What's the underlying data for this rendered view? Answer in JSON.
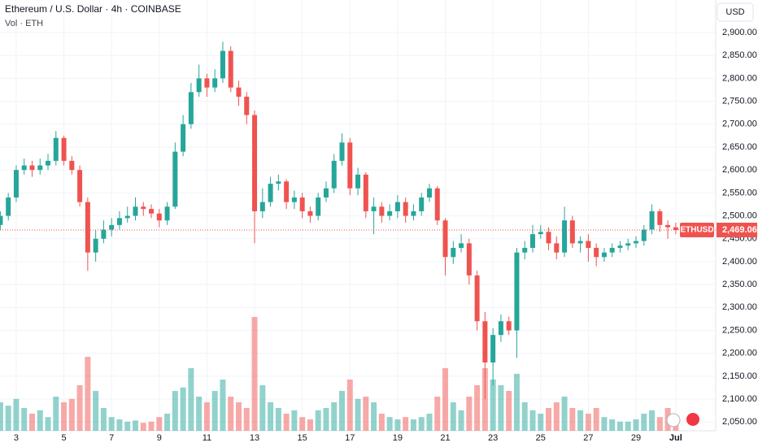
{
  "chart_data": {
    "type": "candlestick",
    "title": "Ethereum / U.S. Dollar · 4h · COINBASE",
    "subtitle": "Vol · ETH",
    "currency": "USD",
    "up_color": "#26a69a",
    "down_color": "#ef5350",
    "open": [
      2480,
      2500,
      2540,
      2600,
      2610,
      2600,
      2610,
      2620,
      2670,
      2620,
      2600,
      2530,
      2420,
      2450,
      2470,
      2480,
      2495,
      2500,
      2520,
      2515,
      2505,
      2490,
      2520,
      2640,
      2700,
      2770,
      2800,
      2780,
      2800,
      2860,
      2780,
      2760,
      2720,
      2510,
      2530,
      2570,
      2575,
      2530,
      2540,
      2510,
      2500,
      2540,
      2560,
      2620,
      2660,
      2560,
      2590,
      2510,
      2520,
      2500,
      2510,
      2530,
      2500,
      2510,
      2540,
      2560,
      2490,
      2410,
      2430,
      2440,
      2370,
      2270,
      2180,
      2240,
      2270,
      2250,
      2420,
      2430,
      2460,
      2465,
      2440,
      2420,
      2490,
      2440,
      2445,
      2430,
      2410,
      2420,
      2430,
      2435,
      2440,
      2445,
      2470,
      2510,
      2480,
      2475
    ],
    "high": [
      2510,
      2550,
      2610,
      2625,
      2620,
      2625,
      2635,
      2685,
      2675,
      2630,
      2610,
      2540,
      2470,
      2490,
      2495,
      2510,
      2520,
      2540,
      2530,
      2525,
      2515,
      2530,
      2660,
      2720,
      2790,
      2830,
      2810,
      2820,
      2880,
      2870,
      2795,
      2770,
      2730,
      2560,
      2585,
      2590,
      2580,
      2555,
      2550,
      2520,
      2550,
      2575,
      2635,
      2680,
      2670,
      2605,
      2595,
      2540,
      2530,
      2525,
      2545,
      2540,
      2525,
      2550,
      2570,
      2565,
      2495,
      2445,
      2460,
      2450,
      2380,
      2290,
      2255,
      2285,
      2280,
      2430,
      2445,
      2480,
      2480,
      2475,
      2455,
      2520,
      2500,
      2455,
      2460,
      2440,
      2430,
      2440,
      2445,
      2450,
      2455,
      2480,
      2525,
      2515,
      2490,
      2485
    ],
    "low": [
      2470,
      2490,
      2530,
      2590,
      2585,
      2590,
      2600,
      2610,
      2610,
      2590,
      2520,
      2380,
      2400,
      2440,
      2455,
      2470,
      2485,
      2490,
      2500,
      2495,
      2475,
      2480,
      2515,
      2630,
      2690,
      2760,
      2760,
      2770,
      2790,
      2770,
      2740,
      2700,
      2440,
      2495,
      2520,
      2555,
      2515,
      2515,
      2495,
      2485,
      2490,
      2530,
      2550,
      2610,
      2545,
      2545,
      2495,
      2460,
      2485,
      2490,
      2495,
      2485,
      2490,
      2500,
      2530,
      2480,
      2370,
      2395,
      2420,
      2350,
      2250,
      2100,
      2130,
      2225,
      2240,
      2190,
      2405,
      2420,
      2450,
      2425,
      2405,
      2410,
      2430,
      2420,
      2400,
      2390,
      2400,
      2410,
      2420,
      2425,
      2430,
      2435,
      2460,
      2465,
      2450,
      2460
    ],
    "close": [
      2500,
      2540,
      2600,
      2610,
      2600,
      2610,
      2620,
      2670,
      2620,
      2600,
      2530,
      2420,
      2450,
      2470,
      2480,
      2495,
      2500,
      2520,
      2515,
      2505,
      2490,
      2520,
      2640,
      2700,
      2770,
      2800,
      2780,
      2800,
      2860,
      2780,
      2760,
      2720,
      2510,
      2530,
      2570,
      2575,
      2530,
      2540,
      2510,
      2500,
      2540,
      2560,
      2620,
      2660,
      2560,
      2590,
      2510,
      2520,
      2500,
      2510,
      2530,
      2500,
      2510,
      2540,
      2560,
      2490,
      2410,
      2430,
      2440,
      2370,
      2270,
      2180,
      2240,
      2270,
      2250,
      2420,
      2430,
      2460,
      2465,
      2440,
      2420,
      2490,
      2440,
      2445,
      2430,
      2410,
      2420,
      2430,
      2435,
      2440,
      2445,
      2470,
      2510,
      2480,
      2475,
      2469.06
    ],
    "volume": [
      25,
      22,
      28,
      20,
      15,
      18,
      12,
      30,
      25,
      28,
      40,
      65,
      35,
      20,
      12,
      10,
      8,
      9,
      7,
      8,
      12,
      15,
      35,
      38,
      55,
      30,
      25,
      35,
      45,
      30,
      25,
      20,
      100,
      40,
      25,
      20,
      15,
      18,
      12,
      10,
      18,
      20,
      25,
      35,
      45,
      28,
      30,
      25,
      15,
      12,
      10,
      12,
      10,
      12,
      15,
      30,
      55,
      25,
      18,
      30,
      40,
      55,
      45,
      40,
      35,
      50,
      25,
      18,
      15,
      20,
      25,
      30,
      20,
      18,
      15,
      20,
      12,
      10,
      8,
      8,
      10,
      15,
      18,
      12,
      20,
      10
    ],
    "vlim": [
      0,
      100
    ],
    "ylim": [
      2031,
      2971
    ],
    "yticks": [
      {
        "value": 2050,
        "label": "2,050.00"
      },
      {
        "value": 2100,
        "label": "2,100.00"
      },
      {
        "value": 2150,
        "label": "2,150.00"
      },
      {
        "value": 2200,
        "label": "2,200.00"
      },
      {
        "value": 2250,
        "label": "2,250.00"
      },
      {
        "value": 2300,
        "label": "2,300.00"
      },
      {
        "value": 2350,
        "label": "2,350.00"
      },
      {
        "value": 2400,
        "label": "2,400.00"
      },
      {
        "value": 2450,
        "label": "2,450.00"
      },
      {
        "value": 2500,
        "label": "2,500.00"
      },
      {
        "value": 2550,
        "label": "2,550.00"
      },
      {
        "value": 2600,
        "label": "2,600.00"
      },
      {
        "value": 2650,
        "label": "2,650.00"
      },
      {
        "value": 2700,
        "label": "2,700.00"
      },
      {
        "value": 2750,
        "label": "2,750.00"
      },
      {
        "value": 2800,
        "label": "2,800.00"
      },
      {
        "value": 2850,
        "label": "2,850.00"
      },
      {
        "value": 2900,
        "label": "2,900.00"
      }
    ],
    "xticks": [
      {
        "value": 2,
        "label": "3"
      },
      {
        "value": 8,
        "label": "5"
      },
      {
        "value": 14,
        "label": "7"
      },
      {
        "value": 20,
        "label": "9"
      },
      {
        "value": 26,
        "label": "11"
      },
      {
        "value": 32,
        "label": "13"
      },
      {
        "value": 38,
        "label": "15"
      },
      {
        "value": 44,
        "label": "17"
      },
      {
        "value": 50,
        "label": "19"
      },
      {
        "value": 56,
        "label": "21"
      },
      {
        "value": 62,
        "label": "23"
      },
      {
        "value": 68,
        "label": "25"
      },
      {
        "value": 74,
        "label": "27"
      },
      {
        "value": 80,
        "label": "29"
      },
      {
        "value": 85,
        "label": "Jul"
      }
    ],
    "grid": true,
    "current_price": {
      "name": "ETHUSD",
      "value": 2469.06,
      "label": "2,469.06"
    }
  }
}
